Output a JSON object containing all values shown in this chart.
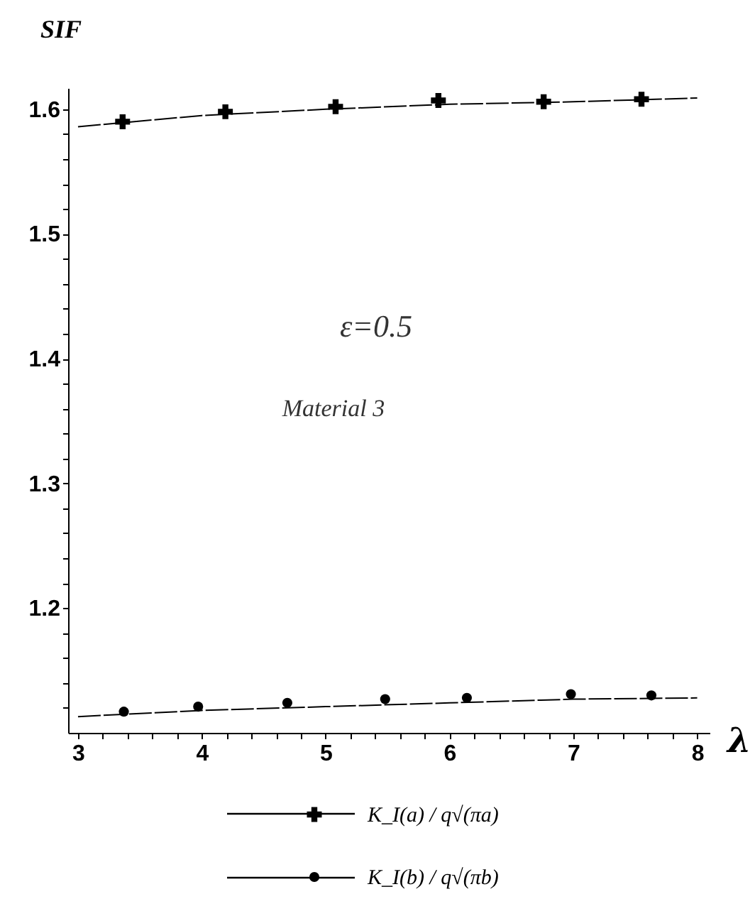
{
  "chart_data": {
    "type": "line",
    "ylabel": "SIF",
    "xlabel": "λ",
    "annotations": [
      "ε=0.5",
      "Material 3"
    ],
    "xlim": [
      2.92,
      8.1
    ],
    "ylim": [
      1.1,
      1.617
    ],
    "xticks": [
      3,
      {
        "value": 3.2,
        "label": null
      },
      {
        "value": 3.4,
        "label": null
      },
      {
        "value": 3.6,
        "label": null
      },
      {
        "value": 3.8,
        "label": null
      },
      4,
      {
        "value": 4.2,
        "label": null
      },
      {
        "value": 4.4,
        "label": null
      },
      {
        "value": 4.6,
        "label": null
      },
      {
        "value": 4.8,
        "label": null
      },
      5,
      {
        "value": 5.2,
        "label": null
      },
      {
        "value": 5.4,
        "label": null
      },
      {
        "value": 5.6,
        "label": null
      },
      {
        "value": 5.8,
        "label": null
      },
      6,
      {
        "value": 6.2,
        "label": null
      },
      {
        "value": 6.4,
        "label": null
      },
      {
        "value": 6.6,
        "label": null
      },
      {
        "value": 6.8,
        "label": null
      },
      7,
      {
        "value": 7.2,
        "label": null
      },
      {
        "value": 7.4,
        "label": null
      },
      {
        "value": 7.6,
        "label": null
      },
      {
        "value": 7.8,
        "label": null
      },
      8
    ],
    "yticks": [
      {
        "value": 1.12,
        "label": null
      },
      {
        "value": 1.14,
        "label": null
      },
      {
        "value": 1.16,
        "label": null
      },
      {
        "value": 1.18,
        "label": null
      },
      1.2,
      {
        "value": 1.22,
        "label": null
      },
      {
        "value": 1.24,
        "label": null
      },
      {
        "value": 1.26,
        "label": null
      },
      {
        "value": 1.28,
        "label": null
      },
      1.3,
      {
        "value": 1.32,
        "label": null
      },
      {
        "value": 1.34,
        "label": null
      },
      {
        "value": 1.36,
        "label": null
      },
      {
        "value": 1.38,
        "label": null
      },
      1.4,
      {
        "value": 1.42,
        "label": null
      },
      {
        "value": 1.44,
        "label": null
      },
      {
        "value": 1.46,
        "label": null
      },
      {
        "value": 1.48,
        "label": null
      },
      1.5,
      {
        "value": 1.52,
        "label": null
      },
      {
        "value": 1.54,
        "label": null
      },
      {
        "value": 1.56,
        "label": null
      },
      {
        "value": 1.58,
        "label": null
      },
      1.6
    ],
    "grid": false,
    "legend": "bottom",
    "series": [
      {
        "type": "line",
        "color": "#000000",
        "marker": "none",
        "line_style": "dashed",
        "x": [
          3,
          4,
          5,
          6,
          7,
          8
        ],
        "values": [
          1.586,
          1.595,
          1.6,
          1.604,
          1.606,
          1.609
        ]
      },
      {
        "type": "scatter",
        "name": "K_I(a) / q√(πa)",
        "color": "#000000",
        "marker": "cross",
        "x": [
          3.36,
          4.19,
          5.08,
          5.91,
          6.76,
          7.55
        ],
        "values": [
          1.59,
          1.598,
          1.602,
          1.607,
          1.606,
          1.608
        ]
      },
      {
        "type": "line",
        "color": "#000000",
        "marker": "none",
        "line_style": "dashed",
        "x": [
          3,
          4,
          5,
          6,
          7,
          8
        ],
        "values": [
          1.113,
          1.118,
          1.121,
          1.124,
          1.127,
          1.128
        ]
      },
      {
        "type": "scatter",
        "name": "K_I(b) / q√(πb)",
        "color": "#000000",
        "marker": "circle",
        "x": [
          3.37,
          3.97,
          4.69,
          5.48,
          6.14,
          6.98,
          7.63
        ],
        "values": [
          1.117,
          1.121,
          1.124,
          1.127,
          1.128,
          1.131,
          1.13
        ]
      }
    ]
  }
}
